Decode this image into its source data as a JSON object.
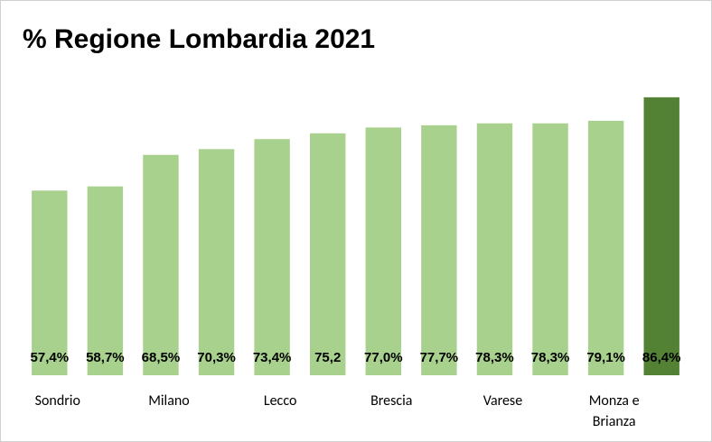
{
  "chart_data": {
    "type": "bar",
    "title": "% Regione Lombardia 2021",
    "categories": [
      "Sondrio",
      null,
      "Milano",
      null,
      "Lecco",
      null,
      "Brescia",
      null,
      "Varese",
      null,
      "Monza e Brianza",
      null
    ],
    "values": [
      57.4,
      58.7,
      68.5,
      70.3,
      73.4,
      75.2,
      77.0,
      77.7,
      78.3,
      78.3,
      79.1,
      86.4
    ],
    "value_labels": [
      "57,4%",
      "58,7%",
      "68,5%",
      "70,3%",
      "73,4%",
      "75,2",
      "77,0%",
      "77,7%",
      "78,3%",
      "78,3%",
      "79,1%",
      "86,4%"
    ],
    "colors": [
      "#a9d18e",
      "#a9d18e",
      "#a9d18e",
      "#a9d18e",
      "#a9d18e",
      "#a9d18e",
      "#a9d18e",
      "#a9d18e",
      "#a9d18e",
      "#a9d18e",
      "#a9d18e",
      "#548235"
    ],
    "ylim": [
      0,
      90
    ]
  }
}
